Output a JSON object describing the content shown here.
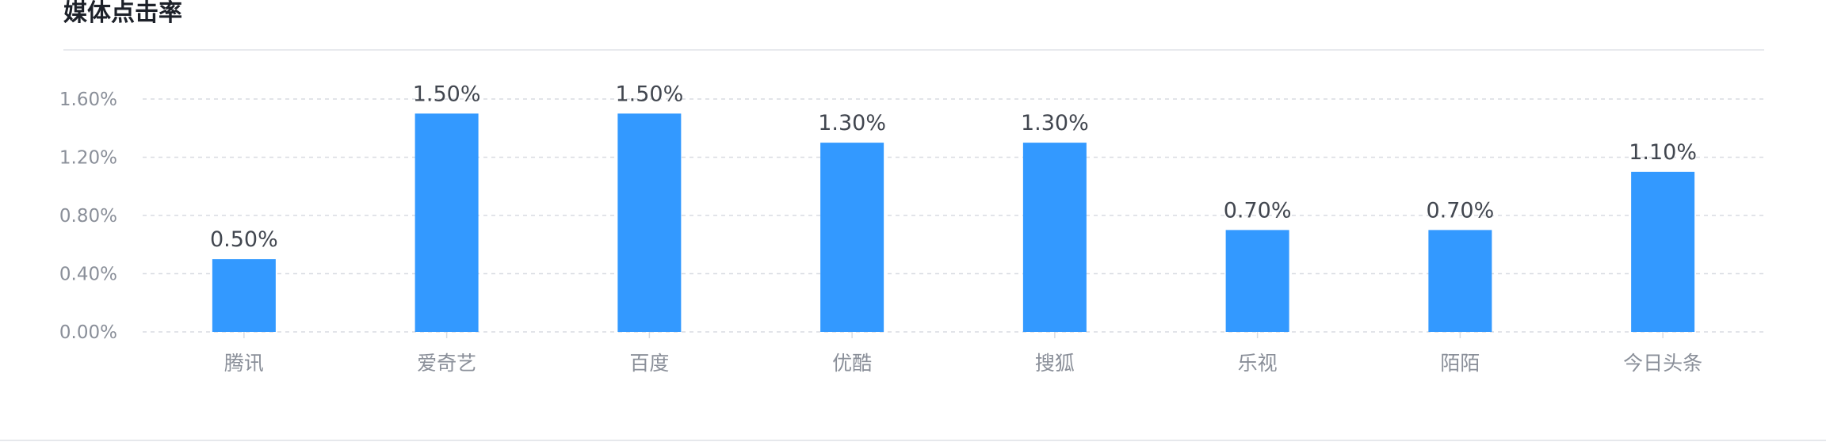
{
  "header": {
    "title": "媒体点击率"
  },
  "colors": {
    "bar": "#3399ff",
    "grid": "#d9dce2",
    "axis_text": "#8a8f99",
    "label_text": "#41464f"
  },
  "chart_data": {
    "type": "bar",
    "title": "媒体点击率",
    "xlabel": "",
    "ylabel": "",
    "categories": [
      "腾讯",
      "爱奇艺",
      "百度",
      "优酷",
      "搜狐",
      "乐视",
      "陌陌",
      "今日头条"
    ],
    "values": [
      0.5,
      1.5,
      1.5,
      1.3,
      1.3,
      0.7,
      0.7,
      1.1
    ],
    "value_labels": [
      "0.50%",
      "1.50%",
      "1.50%",
      "1.30%",
      "1.30%",
      "0.70%",
      "0.70%",
      "1.10%"
    ],
    "ylim": [
      0,
      1.6
    ],
    "yticks": [
      0,
      0.4,
      0.8,
      1.2,
      1.6
    ],
    "ytick_labels": [
      "0.00%",
      "0.40%",
      "0.80%",
      "1.20%",
      "1.60%"
    ],
    "grid": true,
    "legend": "none"
  }
}
